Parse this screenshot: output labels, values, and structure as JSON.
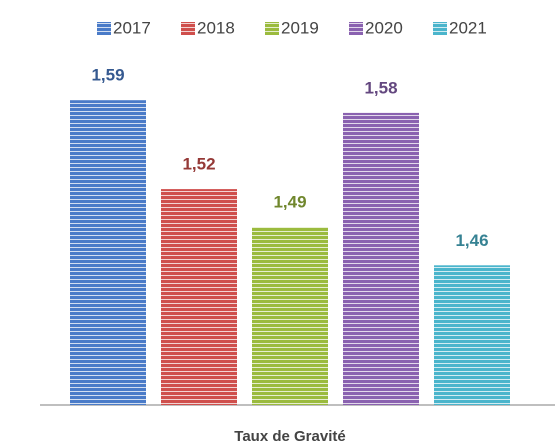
{
  "chart_data": {
    "type": "bar",
    "categories": [
      "Taux de Gravité"
    ],
    "series": [
      {
        "name": "2017",
        "color": "#4a7bc8",
        "values": [
          1.59
        ],
        "value_labels": [
          "1,59"
        ]
      },
      {
        "name": "2018",
        "color": "#cf4f4c",
        "values": [
          1.52
        ],
        "value_labels": [
          "1,52"
        ]
      },
      {
        "name": "2019",
        "color": "#9bbb3e",
        "values": [
          1.49
        ],
        "value_labels": [
          "1,49"
        ]
      },
      {
        "name": "2020",
        "color": "#8a62b0",
        "values": [
          1.58
        ],
        "value_labels": [
          "1,58"
        ]
      },
      {
        "name": "2021",
        "color": "#4bb5cc",
        "values": [
          1.46
        ],
        "value_labels": [
          "1,46"
        ]
      }
    ],
    "ylim": [
      1.35,
      1.65
    ],
    "legend": "top"
  }
}
